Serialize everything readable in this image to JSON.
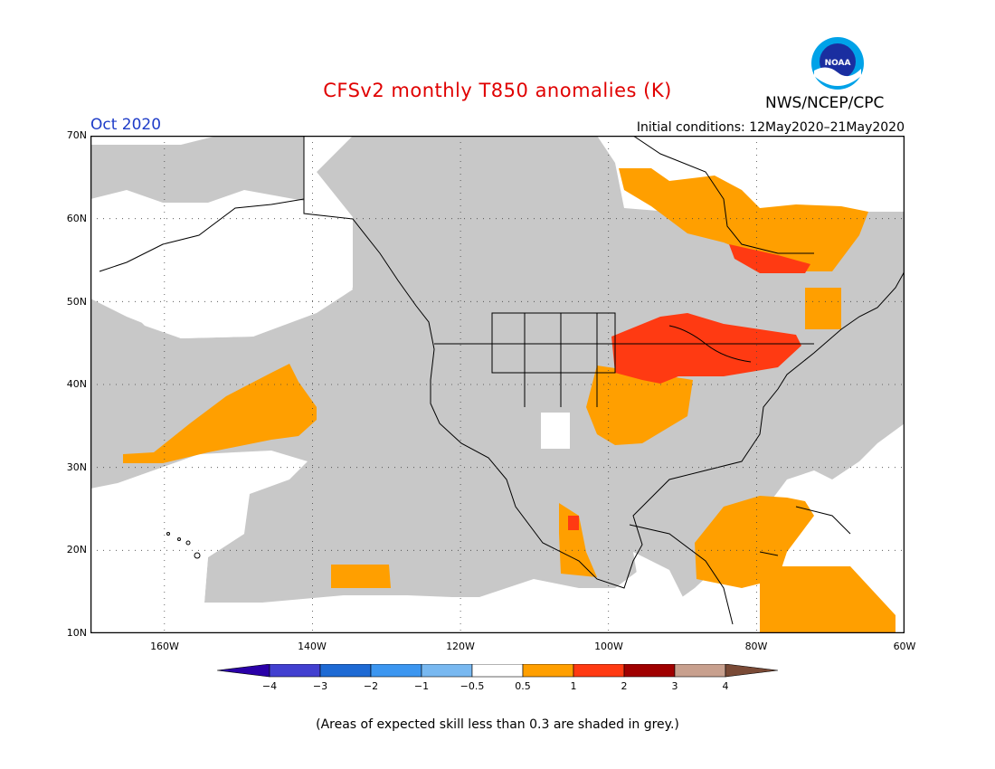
{
  "header": {
    "title": "CFSv2 monthly T850 anomalies (K)",
    "org": "NWS/NCEP/CPC",
    "logo_text": "NOAA",
    "month": "Oct 2020",
    "initial_conditions": "Initial conditions: 12May2020–21May2020"
  },
  "map": {
    "lat_labels": [
      "70N",
      "60N",
      "50N",
      "40N",
      "30N",
      "20N",
      "10N"
    ],
    "lon_labels": [
      "160W",
      "140W",
      "120W",
      "100W",
      "80W",
      "60W"
    ],
    "lat_range": [
      10,
      70
    ],
    "lon_range": [
      -170,
      -60
    ],
    "gridlines": "dotted",
    "background": "#ffffff",
    "land_outline": "#000000"
  },
  "anomaly_regions": [
    {
      "name": "Upper Midwest / Great Lakes",
      "category": "1 to 2",
      "color": "#ff3a12"
    },
    {
      "name": "Central Plains",
      "category": "0.5 to 1",
      "color": "#ff9f00"
    },
    {
      "name": "Hudson Bay / Quebec",
      "category": "0.5 to 1",
      "color": "#ff9f00"
    },
    {
      "name": "James Bay south",
      "category": "1 to 2",
      "color": "#ff3a12"
    },
    {
      "name": "Central Pacific",
      "category": "0.5 to 1",
      "color": "#ff9f00"
    },
    {
      "name": "Caribbean / Gulf",
      "category": "0.5 to 1",
      "color": "#ff9f00"
    },
    {
      "name": "Western Mexico",
      "category": "0.5 to 1",
      "color": "#ff9f00"
    },
    {
      "name": "Maritimes",
      "category": "0.5 to 1",
      "color": "#ff9f00"
    }
  ],
  "colorbar": {
    "labels": [
      "−4",
      "−3",
      "−2",
      "−1",
      "−0.5",
      "0.5",
      "1",
      "2",
      "3",
      "4"
    ],
    "colors": [
      "#2a00a8",
      "#4240d0",
      "#1e6ad4",
      "#3c96f0",
      "#78b8f0",
      "#ffffff",
      "#ff9f00",
      "#ff3a12",
      "#a00000",
      "#c8a08e",
      "#7a4a36"
    ]
  },
  "footnote": "(Areas of expected skill less than 0.3 are shaded in grey.)",
  "colors": {
    "title": "#e00000",
    "month": "#1e3cc8",
    "skill_grey": "#c8c8c8",
    "positive_1": "#ff9f00",
    "positive_2": "#ff3a12"
  }
}
